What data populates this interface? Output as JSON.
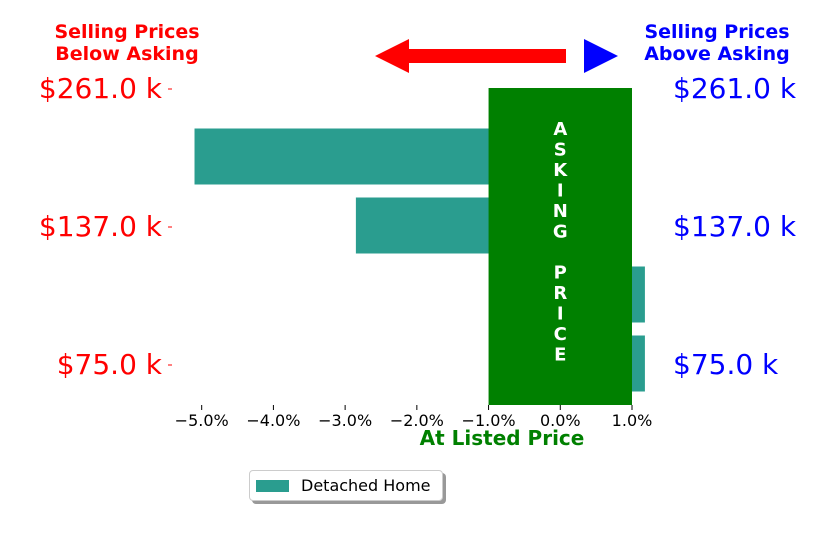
{
  "colors": {
    "bar": "#2a9d8f",
    "band": "#008000",
    "below": "#ff0000",
    "above": "#0000ff",
    "axis_title": "#008000"
  },
  "header": {
    "left_line1": "Selling Prices",
    "left_line2": "Below Asking",
    "right_line1": "Selling Prices",
    "right_line2": "Above Asking"
  },
  "band_label_letters": [
    "A",
    "S",
    "K",
    "I",
    "N",
    "G",
    "",
    "P",
    "R",
    "I",
    "C",
    "E"
  ],
  "chart_data": {
    "type": "bar",
    "orientation": "horizontal",
    "xlabel": "At Listed Price",
    "x_tick_labels": [
      "−5.0%",
      "−4.0%",
      "−3.0%",
      "−2.0%",
      "−1.0%",
      "0.0%",
      "1.0%"
    ],
    "x_ticks": [
      -5,
      -4,
      -3,
      -2,
      -1,
      0,
      1
    ],
    "xlim": [
      -5.4,
      1.0
    ],
    "band_range": [
      -1.0,
      1.0
    ],
    "y_tick_labels": [
      "$261.0 k",
      "$137.0 k",
      "$75.0 k"
    ],
    "y_tick_values": [
      261.0,
      137.0,
      75.0
    ],
    "series": [
      {
        "name": "Detached Home",
        "values": [
          -5.1,
          -2.85,
          1.18,
          1.18
        ]
      }
    ]
  },
  "legend": {
    "label": "Detached Home"
  }
}
